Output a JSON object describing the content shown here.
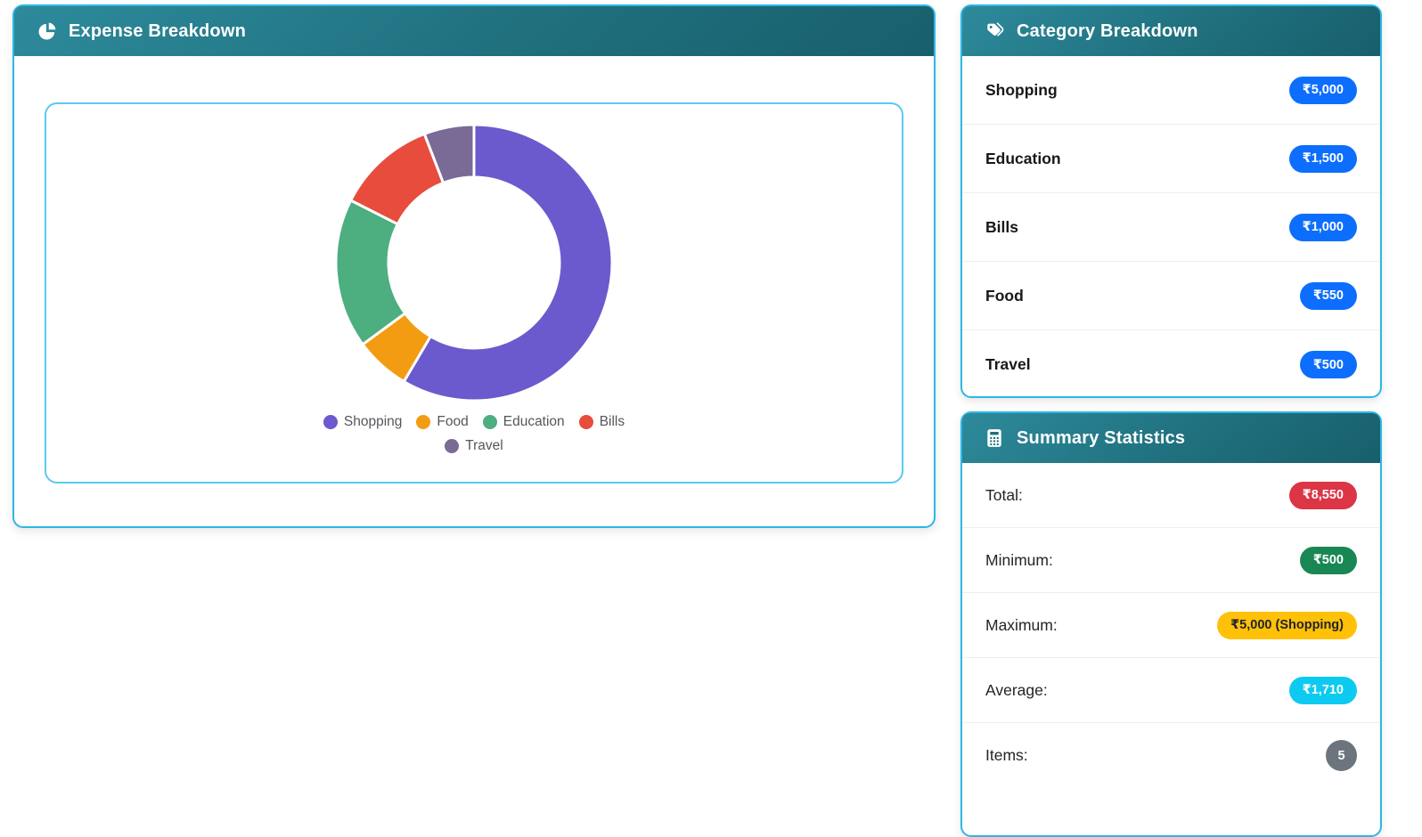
{
  "expense_card": {
    "title": "Expense Breakdown"
  },
  "category_card": {
    "title": "Category Breakdown",
    "items": [
      {
        "label": "Shopping",
        "amount": "₹5,000"
      },
      {
        "label": "Education",
        "amount": "₹1,500"
      },
      {
        "label": "Bills",
        "amount": "₹1,000"
      },
      {
        "label": "Food",
        "amount": "₹550"
      },
      {
        "label": "Travel",
        "amount": "₹500"
      }
    ]
  },
  "summary_card": {
    "title": "Summary Statistics",
    "rows": [
      {
        "label": "Total:",
        "value": "₹8,550"
      },
      {
        "label": "Minimum:",
        "value": "₹500"
      },
      {
        "label": "Maximum:",
        "value": "₹5,000 (Shopping)"
      },
      {
        "label": "Average:",
        "value": "₹1,710"
      },
      {
        "label": "Items:",
        "value": "5"
      }
    ]
  },
  "chart_data": {
    "type": "doughnut",
    "title": "Expense Breakdown",
    "categories": [
      "Shopping",
      "Food",
      "Education",
      "Bills",
      "Travel"
    ],
    "values": [
      5000,
      550,
      1500,
      1000,
      500
    ],
    "colors": [
      "#6A5ACD",
      "#F39C12",
      "#4DAE80",
      "#E74C3C",
      "#7A6A96"
    ],
    "total": 8550,
    "currency": "₹",
    "legend_position": "bottom",
    "cutout_ratio": 0.62,
    "start_angle_deg": 0,
    "direction": "clockwise"
  },
  "colors": {
    "header_teal": "#20707e",
    "card_border": "#2db7e6",
    "chart_box_border": "#5ac9f1",
    "badge_blue": "#0d6efd",
    "badge_red": "#dc3545",
    "badge_green": "#198754",
    "badge_yellow": "#ffc107",
    "badge_cyan": "#0dcaf0",
    "badge_gray": "#6c757d"
  }
}
